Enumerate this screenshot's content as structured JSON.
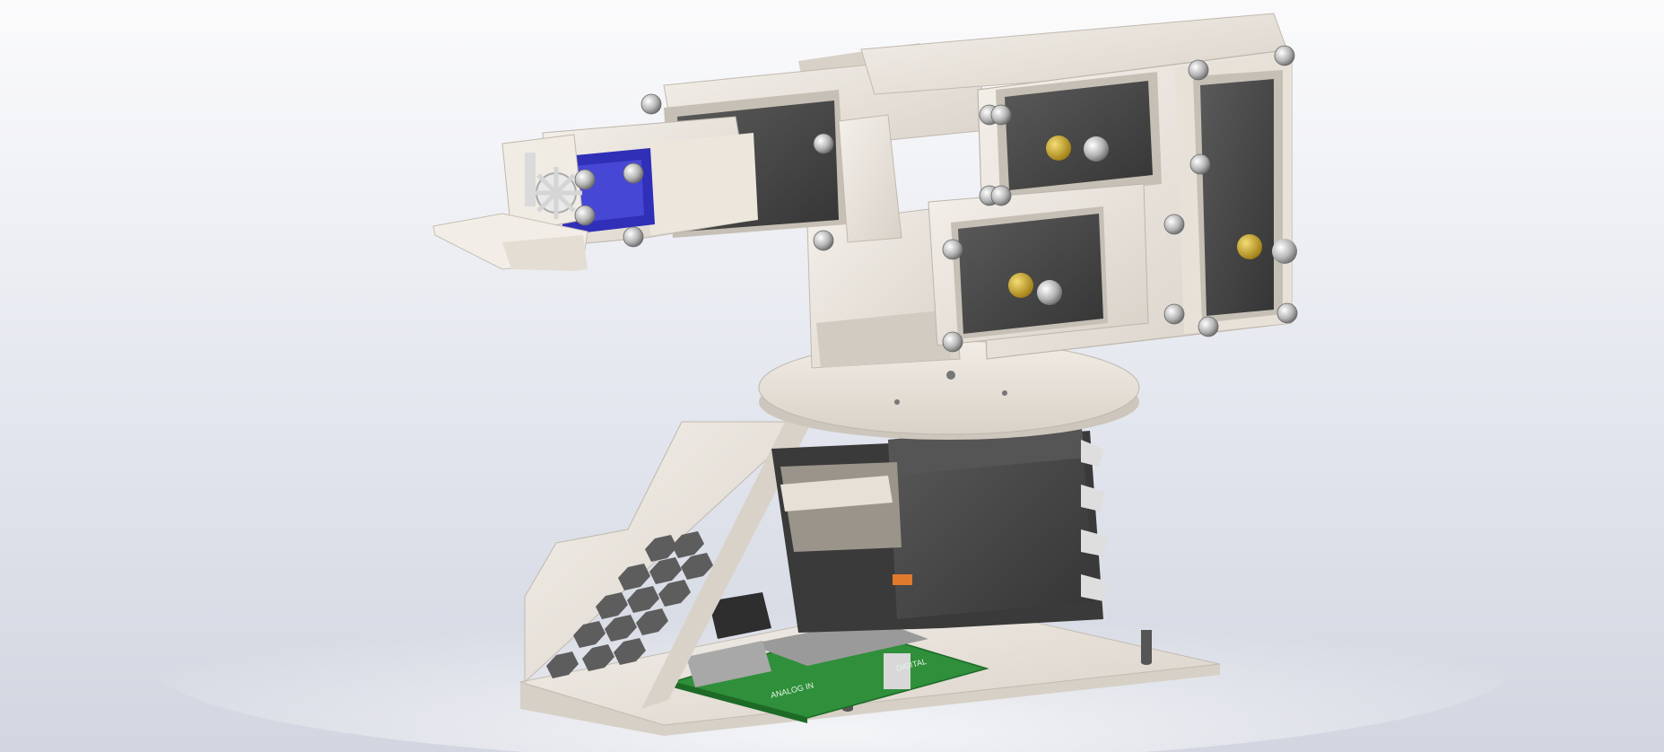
{
  "scene": {
    "title": "",
    "description_visible": false
  },
  "colors": {
    "background_top": "#fbfbfc",
    "background_bottom": "#d5d9e3",
    "plastic": "#e8e2da",
    "plastic_shade": "#cfc8bf",
    "servo_body": "#4a4a4a",
    "servo_dark": "#2f2f2f",
    "servo_blue": "#2f2fb8",
    "pcb": "#2f8f3a",
    "brass": "#c9a227",
    "screw": "#c8c8c8"
  },
  "objects": [
    {
      "name": "base-plate",
      "label": ""
    },
    {
      "name": "honeycomb-support",
      "label": ""
    },
    {
      "name": "base-servo",
      "label": ""
    },
    {
      "name": "rotating-disc",
      "label": ""
    },
    {
      "name": "shoulder-servo",
      "label": ""
    },
    {
      "name": "elbow-servo",
      "label": ""
    },
    {
      "name": "wrist-servo",
      "label": ""
    },
    {
      "name": "gripper-micro-servo",
      "label": ""
    },
    {
      "name": "gripper-gear",
      "label": ""
    },
    {
      "name": "controller-board",
      "label": ""
    }
  ],
  "pcb_text": {
    "label_1": "ANALOG IN",
    "label_2": "DIGITAL"
  }
}
